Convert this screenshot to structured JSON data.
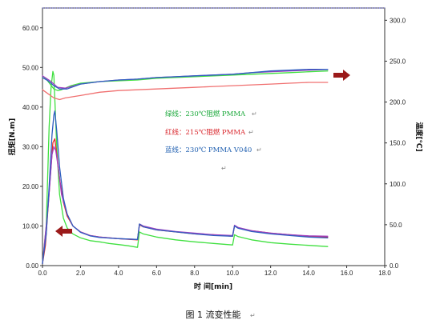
{
  "chart_data": {
    "type": "line",
    "ylabel": "扭矩[N.m]",
    "y2label": "温度[℃]",
    "xlabel": "时 间[min]",
    "caption": "图 1 流变性能",
    "xlim": [
      0,
      18
    ],
    "ylim": [
      0,
      65
    ],
    "y2lim": [
      0,
      315
    ],
    "x_ticks": [
      "0.0",
      "2.0",
      "4.0",
      "6.0",
      "8.0",
      "10.0",
      "12.0",
      "14.0",
      "16.0",
      "18.0"
    ],
    "y_ticks": [
      "0.00",
      "10.00",
      "20.00",
      "30.00",
      "40.00",
      "50.00",
      "60.00"
    ],
    "y2_ticks": [
      "0.0",
      "50.0",
      "100.0",
      "150.0",
      "200.0",
      "250.0",
      "300.0"
    ],
    "annotations": [
      {
        "text": "绿线：230℃阻燃 PMMA",
        "color": "#1aa83a"
      },
      {
        "text": "红线：215℃阻燃 PMMA",
        "color": "#d9252b"
      },
      {
        "text": "蓝线：230℃ PMMA V040",
        "color": "#1f5fb0"
      }
    ],
    "paragraph_marks": [
      "↵",
      "↵",
      "↵",
      "↵",
      "↵"
    ],
    "series": [
      {
        "key": "green_torque",
        "color": "#40e040",
        "axis": "left",
        "x": [
          0,
          0.2,
          0.35,
          0.45,
          0.55,
          0.6,
          0.65,
          0.75,
          0.9,
          1.1,
          1.3,
          1.6,
          2.0,
          2.5,
          3.0,
          3.5,
          4.0,
          4.5,
          5.0,
          5.1,
          5.3,
          6.0,
          7.0,
          8.0,
          9.0,
          10.0,
          10.1,
          10.3,
          11.0,
          12.0,
          13.0,
          14.0,
          15.0
        ],
        "y": [
          0.5,
          10,
          35,
          45,
          49,
          48,
          42,
          30,
          18,
          12,
          9.5,
          8,
          7,
          6.3,
          6,
          5.6,
          5.3,
          5,
          4.6,
          8.5,
          8,
          7.2,
          6.5,
          6,
          5.6,
          5.2,
          7.8,
          7.3,
          6.5,
          5.8,
          5.4,
          5.1,
          4.8
        ]
      },
      {
        "key": "red_torque",
        "color": "#e52a2a",
        "axis": "left",
        "x": [
          0,
          0.15,
          0.3,
          0.45,
          0.55,
          0.65,
          0.75,
          0.9,
          1.1,
          1.3,
          1.6,
          2.0,
          2.5,
          3.0,
          4.0,
          5.0,
          5.1,
          5.3,
          6.0,
          7.0,
          8.0,
          9.0,
          10.0,
          10.1,
          10.3,
          11.0,
          12.0,
          13.0,
          14.0,
          15.0
        ],
        "y": [
          0.5,
          5,
          15,
          25,
          31,
          32,
          28,
          22,
          16,
          12.5,
          10,
          8.5,
          7.6,
          7.2,
          6.8,
          6.5,
          10.3,
          9.8,
          9,
          8.5,
          8,
          7.8,
          7.4,
          10,
          9.5,
          8.8,
          8.2,
          7.8,
          7.4,
          7.2
        ]
      },
      {
        "key": "purple_torque",
        "color": "#a040c0",
        "axis": "left",
        "x": [
          0,
          0.3,
          0.5,
          0.6,
          0.7,
          0.85,
          1.0,
          1.3,
          1.6,
          2.0,
          2.5,
          3.0,
          4.0,
          5.0,
          5.1,
          5.3,
          6.0,
          7.0,
          8.0,
          9.0,
          10.0,
          10.1,
          10.3,
          11.0,
          12.0,
          13.0,
          14.0,
          15.0
        ],
        "y": [
          0.5,
          15,
          28,
          30,
          29,
          24,
          18,
          13,
          10,
          8.5,
          7.6,
          7.2,
          6.8,
          6.6,
          10.5,
          10,
          9.2,
          8.6,
          8.2,
          7.8,
          7.6,
          10.2,
          9.6,
          8.8,
          8.2,
          7.8,
          7.5,
          7.4
        ]
      },
      {
        "key": "blue_torque",
        "color": "#2e5fc0",
        "axis": "left",
        "x": [
          0,
          0.2,
          0.35,
          0.5,
          0.6,
          0.65,
          0.75,
          0.9,
          1.1,
          1.3,
          1.6,
          2.0,
          2.5,
          3.0,
          4.0,
          5.0,
          5.1,
          5.3,
          6.0,
          7.0,
          8.0,
          9.0,
          10.0,
          10.1,
          10.3,
          11.0,
          12.0,
          13.0,
          14.0,
          15.0
        ],
        "y": [
          0.5,
          8,
          20,
          33,
          38,
          39,
          34,
          25,
          17,
          13,
          10,
          8.4,
          7.5,
          7.1,
          6.8,
          6.6,
          10.5,
          9.8,
          9,
          8.5,
          8,
          7.6,
          7.4,
          10,
          9.4,
          8.6,
          8,
          7.6,
          7.2,
          7
        ]
      },
      {
        "key": "green_temp",
        "color": "#40e040",
        "axis": "right",
        "x": [
          0,
          0.2,
          0.4,
          0.6,
          0.8,
          1.0,
          1.5,
          2.0,
          3.0,
          4.0,
          5.0,
          6.0,
          7.0,
          8.0,
          9.0,
          10.0,
          11.0,
          12.0,
          13.0,
          14.0,
          15.0
        ],
        "y": [
          230,
          228,
          222,
          216,
          214,
          215,
          220,
          223,
          225,
          226,
          227,
          229,
          230,
          231,
          232,
          233,
          234,
          235,
          236,
          237,
          238
        ]
      },
      {
        "key": "red_temp",
        "color": "#f07070",
        "axis": "right",
        "x": [
          0,
          0.3,
          0.6,
          0.9,
          1.2,
          2.0,
          3.0,
          4.0,
          5.0,
          6.0,
          7.0,
          8.0,
          9.0,
          10.0,
          11.0,
          12.0,
          13.0,
          14.0,
          15.0
        ],
        "y": [
          215,
          210,
          205,
          203,
          205,
          208,
          212,
          214,
          215,
          216,
          217,
          218,
          219,
          220,
          221,
          222,
          223,
          224,
          224
        ]
      },
      {
        "key": "purple_temp",
        "color": "#a040c0",
        "axis": "right",
        "x": [
          0,
          0.4,
          0.8,
          1.2,
          2.0,
          3.0,
          4.0,
          5.0,
          6.0,
          7.0,
          8.0,
          9.0,
          10.0,
          11.0,
          12.0,
          13.0,
          14.0,
          15.0
        ],
        "y": [
          232,
          226,
          218,
          217,
          222,
          225,
          227,
          228,
          230,
          231,
          232,
          233,
          234,
          236,
          237,
          238,
          239,
          240
        ]
      },
      {
        "key": "blue_temp",
        "color": "#2e5fc0",
        "axis": "right",
        "x": [
          0,
          0.3,
          0.6,
          0.9,
          1.3,
          2.0,
          3.0,
          4.0,
          5.0,
          6.0,
          7.0,
          8.0,
          9.0,
          10.0,
          11.0,
          12.0,
          13.0,
          14.0,
          15.0
        ],
        "y": [
          230,
          226,
          220,
          216,
          216,
          222,
          225,
          227,
          228,
          230,
          231,
          232,
          233,
          234,
          236,
          238,
          239,
          240,
          240
        ]
      }
    ]
  }
}
